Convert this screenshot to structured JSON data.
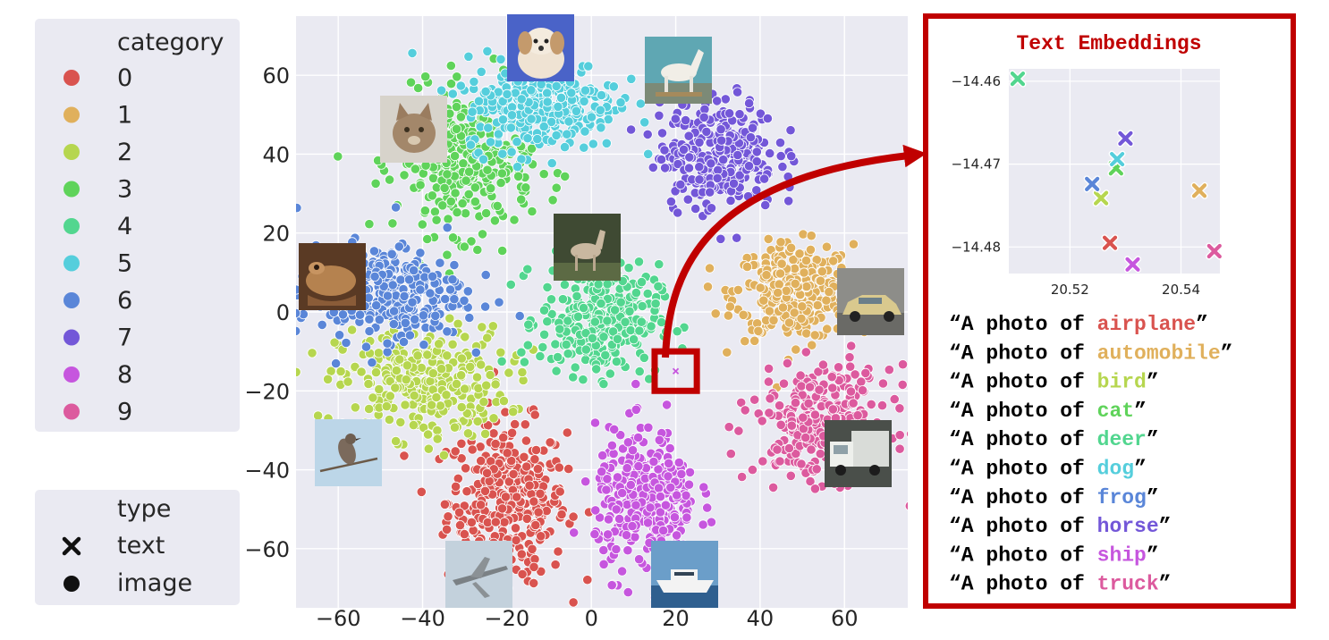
{
  "colors": {
    "panel_bg": "#eaeaf2",
    "highlight": "#c00000",
    "categories": [
      "#d9534f",
      "#e0b05c",
      "#b6d64f",
      "#5fd35a",
      "#52d68f",
      "#55cedc",
      "#5a86d8",
      "#7357d8",
      "#c656de",
      "#dc5a9e"
    ]
  },
  "icons": {
    "text_marker": "x-marker-icon",
    "image_marker": "circle-marker-icon",
    "thumbnails": [
      "dog-thumbnail",
      "horse-thumbnail",
      "cat-thumbnail",
      "deer-thumbnail",
      "frog-thumbnail",
      "automobile-thumbnail",
      "bird-thumbnail",
      "truck-thumbnail",
      "airplane-thumbnail",
      "ship-thumbnail"
    ]
  },
  "legend": {
    "category_title": "category",
    "categories": [
      "0",
      "1",
      "2",
      "3",
      "4",
      "5",
      "6",
      "7",
      "8",
      "9"
    ],
    "type_title": "type",
    "types": [
      "text",
      "image"
    ]
  },
  "chart_data": [
    {
      "type": "scatter",
      "title": "",
      "xlabel": "",
      "ylabel": "",
      "xlim": [
        -70,
        75
      ],
      "ylim": [
        -75,
        75
      ],
      "x_ticks": [
        -60,
        -40,
        -20,
        0,
        20,
        40,
        60
      ],
      "y_ticks": [
        60,
        40,
        20,
        0,
        -20,
        -40,
        -60
      ],
      "grid": true,
      "series": [
        {
          "name": "0",
          "type": "image",
          "cx": -20,
          "cy": -48,
          "sx": 7,
          "sy": 10,
          "n": 380
        },
        {
          "name": "1",
          "type": "image",
          "cx": 48,
          "cy": 5,
          "sx": 7,
          "sy": 6,
          "n": 320
        },
        {
          "name": "2",
          "type": "image",
          "cx": -40,
          "cy": -18,
          "sx": 10,
          "sy": 7,
          "n": 300
        },
        {
          "name": "3",
          "type": "image",
          "cx": -30,
          "cy": 38,
          "sx": 8,
          "sy": 9,
          "n": 330
        },
        {
          "name": "4",
          "type": "image",
          "cx": 2,
          "cy": -2,
          "sx": 7,
          "sy": 7,
          "n": 320
        },
        {
          "name": "5",
          "type": "image",
          "cx": -12,
          "cy": 53,
          "sx": 9,
          "sy": 6,
          "n": 320
        },
        {
          "name": "6",
          "type": "image",
          "cx": -50,
          "cy": 5,
          "sx": 10,
          "sy": 6,
          "n": 330
        },
        {
          "name": "7",
          "type": "image",
          "cx": 30,
          "cy": 40,
          "sx": 7,
          "sy": 7,
          "n": 300
        },
        {
          "name": "8",
          "type": "image",
          "cx": 13,
          "cy": -48,
          "sx": 6,
          "sy": 9,
          "n": 340
        },
        {
          "name": "9",
          "type": "image",
          "cx": 55,
          "cy": -28,
          "sx": 8,
          "sy": 7,
          "n": 320
        }
      ],
      "highlight_box": {
        "x": [
          15,
          25
        ],
        "y": [
          -20,
          -10
        ]
      }
    },
    {
      "type": "scatter",
      "title": "Text Embeddings",
      "xlabel": "",
      "ylabel": "",
      "xlim": [
        20.509,
        20.547
      ],
      "ylim": [
        -14.4832,
        -14.4585
      ],
      "x_ticks": [
        20.52,
        20.54
      ],
      "x_tick_labels": [
        "20.52",
        "20.54"
      ],
      "y_ticks": [
        -14.46,
        -14.47,
        -14.48
      ],
      "y_tick_labels": [
        "−14.46",
        "−14.47",
        "−14.48"
      ],
      "grid": true,
      "points": [
        {
          "category": 0,
          "x": 20.5272,
          "y": -14.4795
        },
        {
          "category": 1,
          "x": 20.5433,
          "y": -14.4732
        },
        {
          "category": 2,
          "x": 20.5256,
          "y": -14.4741
        },
        {
          "category": 3,
          "x": 20.5283,
          "y": -14.4705
        },
        {
          "category": 4,
          "x": 20.5106,
          "y": -14.4597
        },
        {
          "category": 5,
          "x": 20.5285,
          "y": -14.4694
        },
        {
          "category": 6,
          "x": 20.524,
          "y": -14.4724
        },
        {
          "category": 7,
          "x": 20.53,
          "y": -14.4669
        },
        {
          "category": 8,
          "x": 20.5313,
          "y": -14.4821
        },
        {
          "category": 9,
          "x": 20.546,
          "y": -14.4805
        }
      ],
      "prompts": [
        {
          "open": "“A photo of ",
          "word": "airplane",
          "close": "”"
        },
        {
          "open": "“A photo of ",
          "word": "automobile",
          "close": "”"
        },
        {
          "open": "“A photo of ",
          "word": "bird",
          "close": "”"
        },
        {
          "open": "“A photo of ",
          "word": "cat",
          "close": "”"
        },
        {
          "open": "“A photo of ",
          "word": "deer",
          "close": "”"
        },
        {
          "open": "“A photo of ",
          "word": "dog",
          "close": "”"
        },
        {
          "open": "“A photo of ",
          "word": "frog",
          "close": "”"
        },
        {
          "open": "“A photo of ",
          "word": "horse",
          "close": "”"
        },
        {
          "open": "“A photo of ",
          "word": "ship",
          "close": "”"
        },
        {
          "open": "“A photo of ",
          "word": "truck",
          "close": "”"
        }
      ]
    }
  ]
}
